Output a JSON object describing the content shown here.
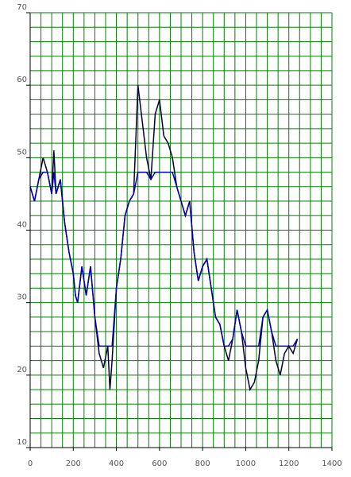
{
  "chart_data": {
    "type": "line",
    "x": [
      0,
      20,
      40,
      60,
      80,
      100,
      110,
      120,
      140,
      160,
      180,
      200,
      210,
      220,
      240,
      260,
      280,
      300,
      320,
      340,
      360,
      370,
      380,
      400,
      420,
      440,
      460,
      480,
      500,
      520,
      540,
      560,
      580,
      600,
      620,
      640,
      660,
      680,
      700,
      720,
      740,
      760,
      780,
      800,
      820,
      840,
      860,
      880,
      900,
      920,
      940,
      960,
      980,
      1000,
      1020,
      1040,
      1060,
      1080,
      1100,
      1120,
      1140,
      1160,
      1180,
      1200,
      1220,
      1240
    ],
    "series": [
      {
        "color": "#000033",
        "values": [
          46,
          44,
          47,
          50,
          48,
          45,
          51,
          45,
          47,
          41,
          37,
          34,
          31,
          30,
          35,
          31,
          35,
          28,
          23,
          21,
          24,
          18,
          22,
          32,
          36,
          42,
          44,
          45,
          60,
          55,
          50,
          47,
          56,
          58,
          53,
          52,
          50,
          46,
          44,
          42,
          44,
          37,
          33,
          35,
          36,
          32,
          28,
          27,
          24,
          22,
          25,
          29,
          26,
          21,
          18,
          19,
          22,
          28,
          29,
          26,
          22,
          20,
          23,
          24,
          23,
          25
        ]
      },
      {
        "color": "#0000aa",
        "values": [
          46,
          44,
          47,
          48,
          48,
          45,
          48,
          45,
          47,
          41,
          37,
          34,
          31,
          30,
          35,
          31,
          35,
          28,
          24,
          24,
          24,
          24,
          24,
          32,
          36,
          42,
          44,
          45,
          48,
          48,
          48,
          47,
          48,
          48,
          48,
          48,
          48,
          46,
          44,
          42,
          44,
          37,
          33,
          35,
          36,
          32,
          28,
          27,
          24,
          24,
          25,
          29,
          26,
          24,
          24,
          24,
          24,
          28,
          29,
          26,
          24,
          24,
          24,
          24,
          24,
          25
        ]
      }
    ],
    "xlim": [
      0,
      1400
    ],
    "ylim": [
      10,
      70
    ],
    "xticks": [
      0,
      200,
      400,
      600,
      800,
      1000,
      1200,
      1400
    ],
    "yticks": [
      10,
      20,
      30,
      40,
      50,
      60,
      70
    ],
    "xgrid": [
      50,
      100,
      150,
      200,
      250,
      300,
      350,
      400,
      450,
      500,
      550,
      600,
      650,
      700,
      750,
      800,
      850,
      900,
      950,
      1000,
      1050,
      1100,
      1150,
      1200,
      1250,
      1300,
      1350,
      1400
    ],
    "ygrid": [
      12,
      14,
      16,
      18,
      20,
      22,
      24,
      26,
      28,
      30,
      32,
      34,
      36,
      38,
      40,
      42,
      44,
      46,
      48,
      50,
      52,
      54,
      56,
      58,
      60,
      62,
      64,
      66,
      68,
      70
    ],
    "grid_color": "#008000"
  }
}
